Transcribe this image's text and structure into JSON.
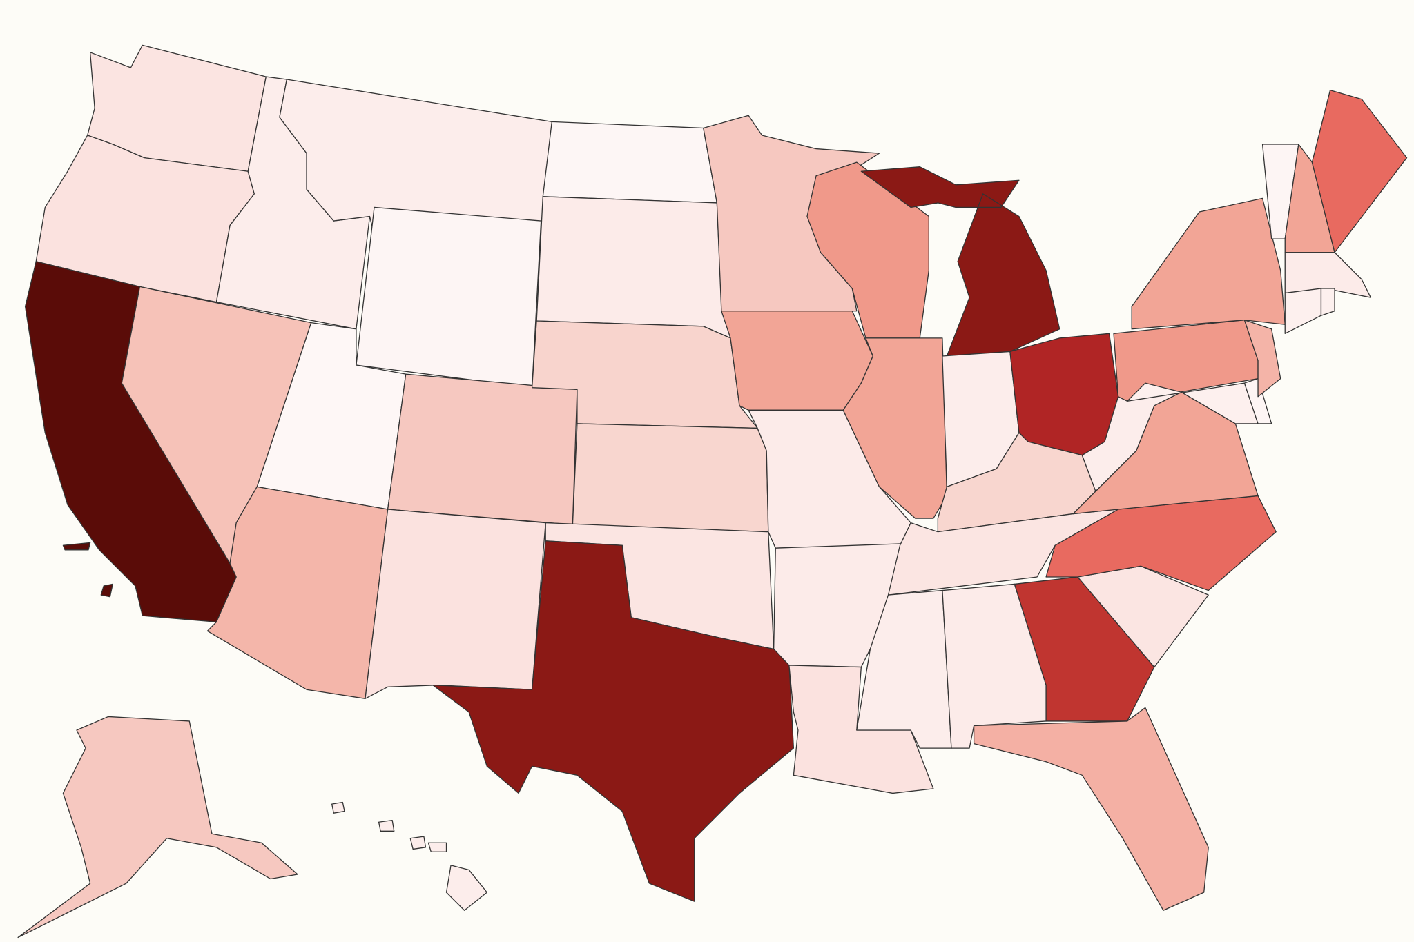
{
  "map": {
    "background": "#fdfcf7",
    "border_color": "#333333",
    "regions": [
      {
        "color": "#fbe4e1"
      },
      {
        "color": "#fbe2df"
      },
      {
        "color": "#5a0c08"
      },
      {
        "color": "#fcedeb"
      },
      {
        "color": "#fcedeb"
      },
      {
        "color": "#fdf5f4"
      },
      {
        "color": "#fef7f6"
      },
      {
        "color": "#f6c2b8"
      },
      {
        "color": "#f4b6aa"
      },
      {
        "color": "#f6c8c0"
      },
      {
        "color": "#fbe2df"
      },
      {
        "color": "#fdf6f5"
      },
      {
        "color": "#fcebe9"
      },
      {
        "color": "#f8d4cd"
      },
      {
        "color": "#f8d6cf"
      },
      {
        "color": "#fbe5e2"
      },
      {
        "color": "#8b1915"
      },
      {
        "color": "#f6c8c0"
      },
      {
        "color": "#f2a596"
      },
      {
        "color": "#fcebe9"
      },
      {
        "color": "#fcebe9"
      },
      {
        "color": "#fbe2df"
      },
      {
        "color": "#f0998a"
      },
      {
        "color": "#f2a596"
      },
      {
        "color": "#8b1915"
      },
      {
        "color": "#fcedeb"
      },
      {
        "color": "#b02525"
      },
      {
        "color": "#f8d6cf"
      },
      {
        "color": "#fbe5e2"
      },
      {
        "color": "#fcedeb"
      },
      {
        "color": "#fcebe9"
      },
      {
        "color": "#c03530"
      },
      {
        "color": "#f4b0a4"
      },
      {
        "color": "#fbe5e2"
      },
      {
        "color": "#e86a60"
      },
      {
        "color": "#f2a596"
      },
      {
        "color": "#fcedeb"
      },
      {
        "color": "#f0998a"
      },
      {
        "color": "#fdf0ee"
      },
      {
        "color": "#fdf5f4"
      },
      {
        "color": "#f4b4a8"
      },
      {
        "color": "#f2a596"
      },
      {
        "color": "#fdf5f4"
      },
      {
        "color": "#f2a596"
      },
      {
        "color": "#e86a60"
      },
      {
        "color": "#fcebe9"
      },
      {
        "color": "#fdf0ee"
      },
      {
        "color": "#fdf0ee"
      },
      {
        "color": "#f6c8c0"
      },
      {
        "color": "#fcedeb"
      }
    ]
  }
}
